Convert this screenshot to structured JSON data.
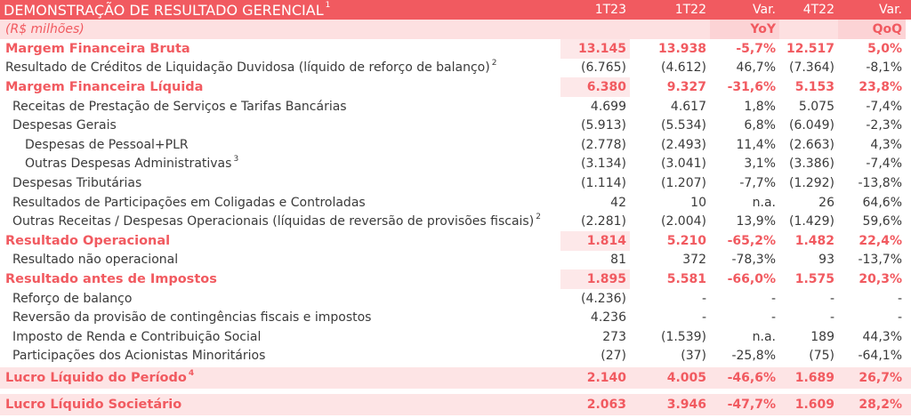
{
  "header": {
    "title": "DEMONSTRAÇÃO DE RESULTADO GERENCIAL",
    "title_sup": "1",
    "cols": [
      "1T23",
      "1T22",
      "Var.",
      "4T22",
      "Var."
    ]
  },
  "subheader": {
    "unit": "(R$ milhões)",
    "yoy": "YoY",
    "qoq": "QoQ"
  },
  "rows": [
    {
      "label": "Margem Financeira Bruta",
      "sup": "",
      "level": 0,
      "bold": true,
      "band": false,
      "v": [
        "13.145",
        "13.938",
        "-5,7%",
        "12.517",
        "5,0%"
      ]
    },
    {
      "label": "Resultado de Créditos de Liquidação Duvidosa (líquido de reforço de balanço)",
      "sup": "2",
      "level": 0,
      "bold": false,
      "band": false,
      "v": [
        "(6.765)",
        "(4.612)",
        "46,7%",
        "(7.364)",
        "-8,1%"
      ]
    },
    {
      "label": "Margem Financeira Líquida",
      "sup": "",
      "level": 0,
      "bold": true,
      "band": false,
      "v": [
        "6.380",
        "9.327",
        "-31,6%",
        "5.153",
        "23,8%"
      ]
    },
    {
      "label": "Receitas de Prestação de Serviços  e Tarifas Bancárias",
      "sup": "",
      "level": 1,
      "bold": false,
      "band": false,
      "v": [
        "4.699",
        "4.617",
        "1,8%",
        "5.075",
        "-7,4%"
      ]
    },
    {
      "label": "Despesas Gerais",
      "sup": "",
      "level": 1,
      "bold": false,
      "band": false,
      "v": [
        "(5.913)",
        "(5.534)",
        "6,8%",
        "(6.049)",
        "-2,3%"
      ]
    },
    {
      "label": "Despesas de Pessoal+PLR",
      "sup": "",
      "level": 2,
      "bold": false,
      "band": false,
      "v": [
        "(2.778)",
        "(2.493)",
        "11,4%",
        "(2.663)",
        "4,3%"
      ]
    },
    {
      "label": "Outras Despesas Administrativas",
      "sup": "3",
      "level": 2,
      "bold": false,
      "band": false,
      "v": [
        "(3.134)",
        "(3.041)",
        "3,1%",
        "(3.386)",
        "-7,4%"
      ]
    },
    {
      "label": "Despesas Tributárias",
      "sup": "",
      "level": 1,
      "bold": false,
      "band": false,
      "v": [
        "(1.114)",
        "(1.207)",
        "-7,7%",
        "(1.292)",
        "-13,8%"
      ]
    },
    {
      "label": "Resultados de Participações em Coligadas e Controladas",
      "sup": "",
      "level": 1,
      "bold": false,
      "band": false,
      "v": [
        "42",
        "10",
        "n.a.",
        "26",
        "64,6%"
      ]
    },
    {
      "label": "Outras Receitas / Despesas Operacionais (líquidas de reversão de provisões fiscais)",
      "sup": "2",
      "level": 1,
      "bold": false,
      "band": false,
      "v": [
        "(2.281)",
        "(2.004)",
        "13,9%",
        "(1.429)",
        "59,6%"
      ]
    },
    {
      "label": "Resultado Operacional",
      "sup": "",
      "level": 0,
      "bold": true,
      "band": false,
      "v": [
        "1.814",
        "5.210",
        "-65,2%",
        "1.482",
        "22,4%"
      ]
    },
    {
      "label": "Resultado não operacional",
      "sup": "",
      "level": 1,
      "bold": false,
      "band": false,
      "v": [
        "81",
        "372",
        "-78,3%",
        "93",
        "-13,7%"
      ]
    },
    {
      "label": "Resultado antes de Impostos",
      "sup": "",
      "level": 0,
      "bold": true,
      "band": false,
      "v": [
        "1.895",
        "5.581",
        "-66,0%",
        "1.575",
        "20,3%"
      ]
    },
    {
      "label": "Reforço de balanço",
      "sup": "",
      "level": 1,
      "bold": false,
      "band": false,
      "v": [
        "(4.236)",
        "-",
        "-",
        "-",
        "-"
      ]
    },
    {
      "label": "Reversão da provisão de contingências fiscais e impostos",
      "sup": "",
      "level": 1,
      "bold": false,
      "band": false,
      "v": [
        "4.236",
        "-",
        "-",
        "-",
        "-"
      ]
    },
    {
      "label": "Imposto de Renda e Contribuição Social",
      "sup": "",
      "level": 1,
      "bold": false,
      "band": false,
      "v": [
        "273",
        "(1.539)",
        "n.a.",
        "189",
        "44,3%"
      ]
    },
    {
      "label": "Participações dos Acionistas Minoritários",
      "sup": "",
      "level": 1,
      "bold": false,
      "band": false,
      "v": [
        "(27)",
        "(37)",
        "-25,8%",
        "(75)",
        "-64,1%"
      ]
    },
    {
      "label": "Lucro Líquido do Período",
      "sup": "4",
      "level": 0,
      "bold": true,
      "band": true,
      "v": [
        "2.140",
        "4.005",
        "-46,6%",
        "1.689",
        "26,7%"
      ]
    },
    {
      "label": "Lucro Líquido Societário",
      "sup": "",
      "level": 0,
      "bold": true,
      "band": true,
      "v": [
        "2.063",
        "3.946",
        "-47,7%",
        "1.609",
        "28,2%"
      ]
    }
  ]
}
